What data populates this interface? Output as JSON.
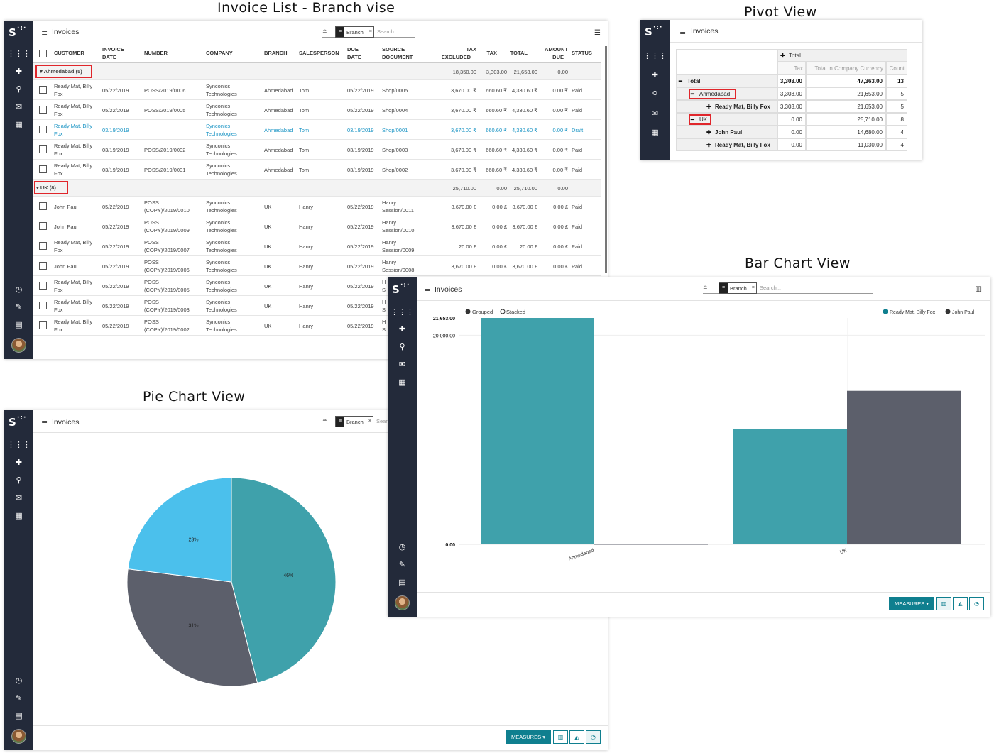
{
  "captions": {
    "list": "Invoice List - Branch vise",
    "pivot": "Pivot View",
    "bar": "Bar Chart View",
    "pie": "Pie Chart View"
  },
  "app": {
    "logo": "S",
    "title": "Invoices",
    "facet_label": "Branch",
    "facet_close": "×",
    "search_placeholder": "Search...",
    "measures_label": "MEASURES ▾"
  },
  "list": {
    "headers": {
      "customer": "CUSTOMER",
      "invoice_date": [
        "INVOICE",
        "DATE"
      ],
      "number": "NUMBER",
      "company": "COMPANY",
      "branch": "BRANCH",
      "salesperson": "SALESPERSON",
      "due_date": [
        "DUE",
        "DATE"
      ],
      "source": [
        "SOURCE",
        "DOCUMENT"
      ],
      "tax_excluded": [
        "TAX",
        "EXCLUDED"
      ],
      "tax": "TAX",
      "total": "TOTAL",
      "amount_due": [
        "AMOUNT",
        "DUE"
      ],
      "status": "STATUS"
    },
    "groups": [
      {
        "label": "▾ Ahmedabad (5)",
        "tax_excluded": "18,350.00",
        "tax": "3,303.00",
        "total": "21,653.00",
        "amount_due": "0.00",
        "rows": [
          {
            "customer": [
              "Ready Mat, Billy",
              "Fox"
            ],
            "date": "05/22/2019",
            "number": [
              "POSS/2019/0006",
              ""
            ],
            "company": [
              "Synconics",
              "Technologies"
            ],
            "branch": "Ahmedabad",
            "salesperson": "Tom",
            "due": "05/22/2019",
            "source": [
              "Shop/0005",
              ""
            ],
            "tax_excluded": "3,670.00 ₹",
            "tax": "660.60 ₹",
            "total": "4,330.60 ₹",
            "amount_due": "0.00 ₹",
            "status": "Paid",
            "draft": false
          },
          {
            "customer": [
              "Ready Mat, Billy",
              "Fox"
            ],
            "date": "05/22/2019",
            "number": [
              "POSS/2019/0005",
              ""
            ],
            "company": [
              "Synconics",
              "Technologies"
            ],
            "branch": "Ahmedabad",
            "salesperson": "Tom",
            "due": "05/22/2019",
            "source": [
              "Shop/0004",
              ""
            ],
            "tax_excluded": "3,670.00 ₹",
            "tax": "660.60 ₹",
            "total": "4,330.60 ₹",
            "amount_due": "0.00 ₹",
            "status": "Paid",
            "draft": false
          },
          {
            "customer": [
              "Ready Mat, Billy",
              "Fox"
            ],
            "date": "03/19/2019",
            "number": [
              "",
              ""
            ],
            "company": [
              "Synconics",
              "Technologies"
            ],
            "branch": "Ahmedabad",
            "salesperson": "Tom",
            "due": "03/19/2019",
            "source": [
              "Shop/0001",
              ""
            ],
            "tax_excluded": "3,670.00 ₹",
            "tax": "660.60 ₹",
            "total": "4,330.60 ₹",
            "amount_due": "0.00 ₹",
            "status": "Draft",
            "draft": true
          },
          {
            "customer": [
              "Ready Mat, Billy",
              "Fox"
            ],
            "date": "03/19/2019",
            "number": [
              "POSS/2019/0002",
              ""
            ],
            "company": [
              "Synconics",
              "Technologies"
            ],
            "branch": "Ahmedabad",
            "salesperson": "Tom",
            "due": "03/19/2019",
            "source": [
              "Shop/0003",
              ""
            ],
            "tax_excluded": "3,670.00 ₹",
            "tax": "660.60 ₹",
            "total": "4,330.60 ₹",
            "amount_due": "0.00 ₹",
            "status": "Paid",
            "draft": false
          },
          {
            "customer": [
              "Ready Mat, Billy",
              "Fox"
            ],
            "date": "03/19/2019",
            "number": [
              "POSS/2019/0001",
              ""
            ],
            "company": [
              "Synconics",
              "Technologies"
            ],
            "branch": "Ahmedabad",
            "salesperson": "Tom",
            "due": "03/19/2019",
            "source": [
              "Shop/0002",
              ""
            ],
            "tax_excluded": "3,670.00 ₹",
            "tax": "660.60 ₹",
            "total": "4,330.60 ₹",
            "amount_due": "0.00 ₹",
            "status": "Paid",
            "draft": false
          }
        ]
      },
      {
        "label": "▾ UK (8)",
        "tax_excluded": "25,710.00",
        "tax": "0.00",
        "total": "25,710.00",
        "amount_due": "0.00",
        "rows": [
          {
            "customer": [
              "John Paul",
              ""
            ],
            "date": "05/22/2019",
            "number": [
              "POSS",
              "(COPY)/2019/0010"
            ],
            "company": [
              "Synconics",
              "Technologies"
            ],
            "branch": "UK",
            "salesperson": "Hanry",
            "due": "05/22/2019",
            "source": [
              "Hanry",
              "Session/0011"
            ],
            "tax_excluded": "3,670.00 £",
            "tax": "0.00 £",
            "total": "3,670.00 £",
            "amount_due": "0.00 £",
            "status": "Paid",
            "draft": false
          },
          {
            "customer": [
              "John Paul",
              ""
            ],
            "date": "05/22/2019",
            "number": [
              "POSS",
              "(COPY)/2019/0009"
            ],
            "company": [
              "Synconics",
              "Technologies"
            ],
            "branch": "UK",
            "salesperson": "Hanry",
            "due": "05/22/2019",
            "source": [
              "Hanry",
              "Session/0010"
            ],
            "tax_excluded": "3,670.00 £",
            "tax": "0.00 £",
            "total": "3,670.00 £",
            "amount_due": "0.00 £",
            "status": "Paid",
            "draft": false
          },
          {
            "customer": [
              "Ready Mat, Billy",
              "Fox"
            ],
            "date": "05/22/2019",
            "number": [
              "POSS",
              "(COPY)/2019/0007"
            ],
            "company": [
              "Synconics",
              "Technologies"
            ],
            "branch": "UK",
            "salesperson": "Hanry",
            "due": "05/22/2019",
            "source": [
              "Hanry",
              "Session/0009"
            ],
            "tax_excluded": "20.00 £",
            "tax": "0.00 £",
            "total": "20.00 £",
            "amount_due": "0.00 £",
            "status": "Paid",
            "draft": false
          },
          {
            "customer": [
              "John Paul",
              ""
            ],
            "date": "05/22/2019",
            "number": [
              "POSS",
              "(COPY)/2019/0006"
            ],
            "company": [
              "Synconics",
              "Technologies"
            ],
            "branch": "UK",
            "salesperson": "Hanry",
            "due": "05/22/2019",
            "source": [
              "Hanry",
              "Session/0008"
            ],
            "tax_excluded": "3,670.00 £",
            "tax": "0.00 £",
            "total": "3,670.00 £",
            "amount_due": "0.00 £",
            "status": "Paid",
            "draft": false
          },
          {
            "customer": [
              "Ready Mat, Billy",
              "Fox"
            ],
            "date": "05/22/2019",
            "number": [
              "POSS",
              "(COPY)/2019/0005"
            ],
            "company": [
              "Synconics",
              "Technologies"
            ],
            "branch": "UK",
            "salesperson": "Hanry",
            "due": "05/22/2019",
            "source": [
              "H",
              "S"
            ],
            "tax_excluded": "",
            "tax": "",
            "total": "",
            "amount_due": "",
            "status": "",
            "draft": false
          },
          {
            "customer": [
              "Ready Mat, Billy",
              "Fox"
            ],
            "date": "05/22/2019",
            "number": [
              "POSS",
              "(COPY)/2019/0003"
            ],
            "company": [
              "Synconics",
              "Technologies"
            ],
            "branch": "UK",
            "salesperson": "Hanry",
            "due": "05/22/2019",
            "source": [
              "H",
              "S"
            ],
            "tax_excluded": "",
            "tax": "",
            "total": "",
            "amount_due": "",
            "status": "",
            "draft": false
          },
          {
            "customer": [
              "Ready Mat, Billy",
              "Fox"
            ],
            "date": "05/22/2019",
            "number": [
              "POSS",
              "(COPY)/2019/0002"
            ],
            "company": [
              "Synconics",
              "Technologies"
            ],
            "branch": "UK",
            "salesperson": "Hanry",
            "due": "05/22/2019",
            "source": [
              "H",
              "S"
            ],
            "tax_excluded": "",
            "tax": "",
            "total": "",
            "amount_due": "",
            "status": "",
            "draft": false
          }
        ]
      }
    ]
  },
  "pivot": {
    "col_total": "Total",
    "measures": [
      "Tax",
      "Total in Company Currency",
      "Count"
    ],
    "rows": [
      {
        "label": "Total",
        "expander": "−",
        "tax": "3,303.00",
        "total_cc": "47,363.00",
        "count": "13",
        "level": 0,
        "boxed": false
      },
      {
        "label": "Ahmedabad",
        "expander": "−",
        "tax": "3,303.00",
        "total_cc": "21,653.00",
        "count": "5",
        "level": 1,
        "boxed": true
      },
      {
        "label": "Ready Mat, Billy Fox",
        "expander": "+",
        "tax": "3,303.00",
        "total_cc": "21,653.00",
        "count": "5",
        "level": 2,
        "boxed": false
      },
      {
        "label": "UK",
        "expander": "−",
        "tax": "0.00",
        "total_cc": "25,710.00",
        "count": "8",
        "level": 1,
        "boxed": true
      },
      {
        "label": "John Paul",
        "expander": "+",
        "tax": "0.00",
        "total_cc": "14,680.00",
        "count": "4",
        "level": 2,
        "boxed": false
      },
      {
        "label": "Ready Mat, Billy Fox",
        "expander": "+",
        "tax": "0.00",
        "total_cc": "11,030.00",
        "count": "4",
        "level": 2,
        "boxed": false
      }
    ]
  },
  "bar": {
    "mode_grouped": "Grouped",
    "mode_stacked": "Stacked"
  },
  "colors": {
    "teal": "#3fa1ab",
    "slate": "#5c5f6b",
    "sky": "#4bc0ec",
    "accent": "#0f7f8f",
    "sidebar": "#232a3a",
    "highlight": "#e0262b"
  },
  "chart_data": [
    {
      "type": "bar",
      "categories": [
        "Ahmedabad",
        "UK"
      ],
      "series": [
        {
          "name": "Ready Mat, Billy Fox",
          "values": [
            21653.0,
            11030.0
          ]
        },
        {
          "name": "John Paul",
          "values": [
            0.0,
            14680.0
          ]
        }
      ],
      "tick_labels": [
        "21,653.00",
        "20,000.00",
        "0.00"
      ],
      "ylim": [
        0,
        21653
      ],
      "legend": "top-right",
      "grid": true
    },
    {
      "type": "pie",
      "slices": [
        {
          "value": 46,
          "label": "46%",
          "color": "#3fa1ab"
        },
        {
          "value": 31,
          "label": "31%",
          "color": "#5c5f6b"
        },
        {
          "value": 23,
          "label": "23%",
          "color": "#4bc0ec"
        }
      ]
    }
  ]
}
